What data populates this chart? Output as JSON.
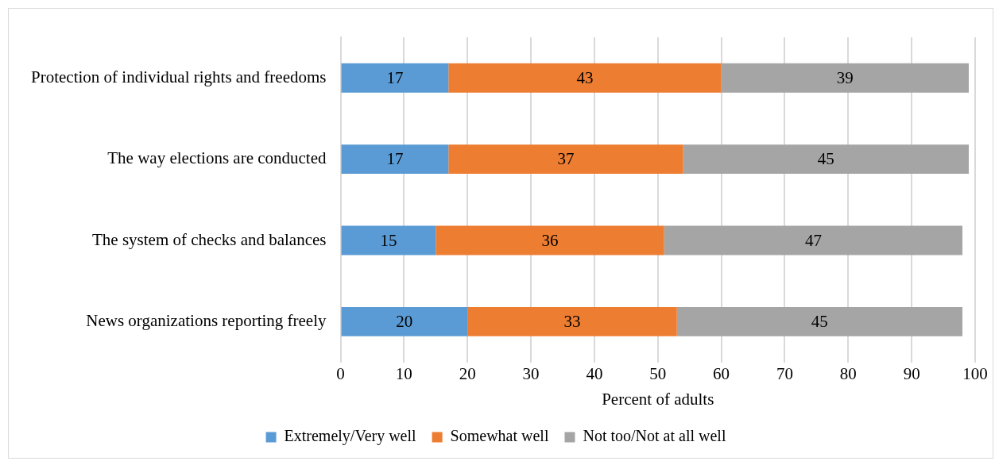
{
  "chart_data": {
    "type": "bar",
    "orientation": "horizontal",
    "stacked": true,
    "categories": [
      "Protection of individual rights and freedoms",
      "The way elections are conducted",
      "The system of checks and balances",
      "News organizations reporting freely"
    ],
    "series": [
      {
        "name": "Extremely/Very well",
        "color": "#5b9bd5",
        "values": [
          17,
          17,
          15,
          20
        ]
      },
      {
        "name": "Somewhat well",
        "color": "#ed7d31",
        "values": [
          43,
          37,
          36,
          33
        ]
      },
      {
        "name": "Not too/Not at all well",
        "color": "#a5a5a5",
        "values": [
          39,
          45,
          47,
          45
        ]
      }
    ],
    "xlabel": "Percent of adults",
    "xlim": [
      0,
      100
    ],
    "xticks": [
      0,
      10,
      20,
      30,
      40,
      50,
      60,
      70,
      80,
      90,
      100
    ],
    "grid": "x",
    "legend": "bottom",
    "data_labels": true
  }
}
